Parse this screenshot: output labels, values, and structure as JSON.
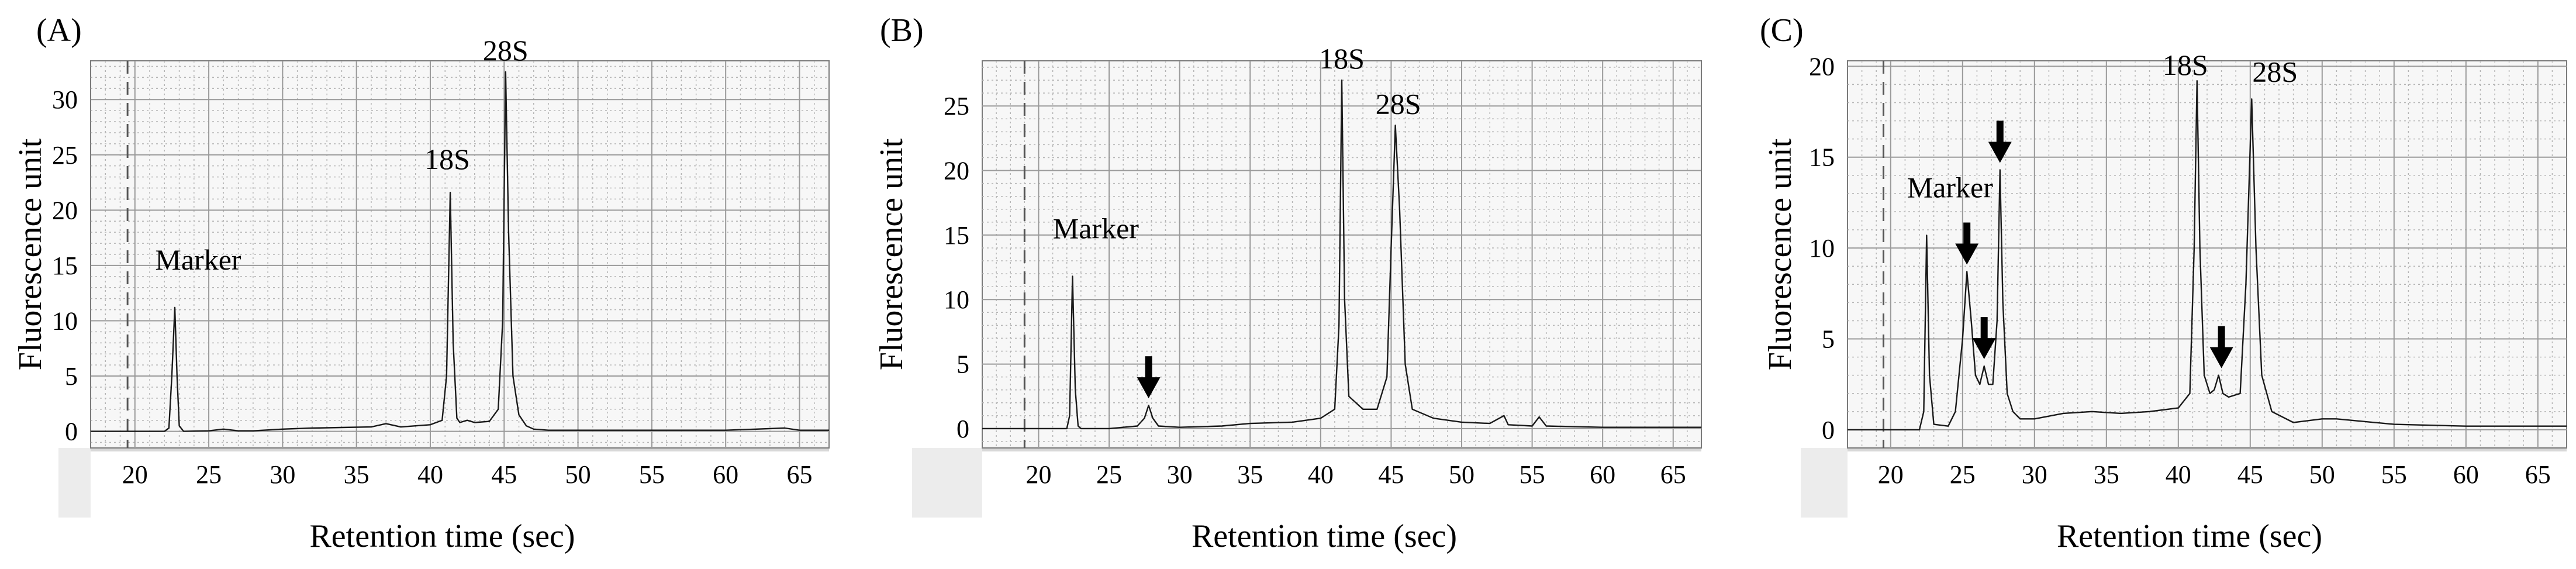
{
  "chart_data": [
    {
      "type": "line",
      "panel": "(A)",
      "xlabel": "Retention time (sec)",
      "ylabel": "Fluorescence unit",
      "xlim": [
        17,
        67
      ],
      "ylim": [
        -1.5,
        33.5
      ],
      "x_ticks": [
        20,
        25,
        30,
        35,
        40,
        45,
        50,
        55,
        60,
        65
      ],
      "y_ticks": [
        0,
        5,
        10,
        15,
        20,
        25,
        30
      ],
      "grid": true,
      "dashed_marker_x": 19.5,
      "series": [
        {
          "points": [
            [
              17,
              0
            ],
            [
              19,
              0
            ],
            [
              20,
              0
            ],
            [
              21,
              0
            ],
            [
              22,
              0
            ],
            [
              22.3,
              0.3
            ],
            [
              22.5,
              5
            ],
            [
              22.7,
              11.2
            ],
            [
              22.85,
              5
            ],
            [
              23,
              0.5
            ],
            [
              23.3,
              0
            ],
            [
              25,
              0.05
            ],
            [
              26,
              0.2
            ],
            [
              27,
              0.05
            ],
            [
              28,
              0.05
            ],
            [
              30,
              0.2
            ],
            [
              32,
              0.3
            ],
            [
              34,
              0.35
            ],
            [
              36,
              0.4
            ],
            [
              37,
              0.7
            ],
            [
              38,
              0.4
            ],
            [
              39,
              0.5
            ],
            [
              40,
              0.6
            ],
            [
              40.8,
              1
            ],
            [
              41.1,
              5
            ],
            [
              41.35,
              21.6
            ],
            [
              41.55,
              8
            ],
            [
              41.8,
              1.2
            ],
            [
              42,
              0.8
            ],
            [
              42.5,
              1
            ],
            [
              43,
              0.8
            ],
            [
              44,
              0.9
            ],
            [
              44.6,
              2
            ],
            [
              44.9,
              10
            ],
            [
              45.1,
              32.5
            ],
            [
              45.3,
              18
            ],
            [
              45.6,
              5
            ],
            [
              46,
              1.5
            ],
            [
              46.5,
              0.5
            ],
            [
              47,
              0.2
            ],
            [
              48,
              0.1
            ],
            [
              50,
              0.1
            ],
            [
              55,
              0.1
            ],
            [
              60,
              0.1
            ],
            [
              64,
              0.3
            ],
            [
              65,
              0.1
            ],
            [
              67,
              0.1
            ]
          ]
        }
      ],
      "annotations": [
        {
          "text": "Marker",
          "x": 22.7,
          "y": 11.2
        },
        {
          "text": "18S",
          "x": 41.35,
          "y": 21.6
        },
        {
          "text": "28S",
          "x": 45.1,
          "y": 32.5
        }
      ],
      "arrows": []
    },
    {
      "type": "line",
      "panel": "(B)",
      "xlabel": "Retention time (sec)",
      "ylabel": "Fluorescence unit",
      "xlim": [
        16,
        67
      ],
      "ylim": [
        -1.5,
        28.5
      ],
      "x_ticks": [
        20,
        25,
        30,
        35,
        40,
        45,
        50,
        55,
        60,
        65
      ],
      "y_ticks": [
        0,
        5,
        10,
        15,
        20,
        25
      ],
      "grid": true,
      "dashed_marker_x": 19,
      "series": [
        {
          "points": [
            [
              16,
              0
            ],
            [
              20,
              0
            ],
            [
              22,
              0
            ],
            [
              22.2,
              1
            ],
            [
              22.4,
              11.8
            ],
            [
              22.6,
              3
            ],
            [
              22.8,
              0.2
            ],
            [
              23,
              0
            ],
            [
              25,
              0
            ],
            [
              27,
              0.2
            ],
            [
              27.5,
              0.8
            ],
            [
              27.8,
              1.8
            ],
            [
              28.1,
              0.8
            ],
            [
              28.5,
              0.2
            ],
            [
              30,
              0.1
            ],
            [
              33,
              0.2
            ],
            [
              35,
              0.4
            ],
            [
              38,
              0.5
            ],
            [
              40,
              0.8
            ],
            [
              41,
              1.5
            ],
            [
              41.3,
              8
            ],
            [
              41.5,
              27
            ],
            [
              41.7,
              10
            ],
            [
              42,
              2.5
            ],
            [
              43,
              1.5
            ],
            [
              44,
              1.5
            ],
            [
              44.7,
              4
            ],
            [
              45,
              14
            ],
            [
              45.3,
              23.5
            ],
            [
              45.6,
              17
            ],
            [
              46,
              5
            ],
            [
              46.5,
              1.5
            ],
            [
              48,
              0.8
            ],
            [
              50,
              0.5
            ],
            [
              52,
              0.4
            ],
            [
              53,
              1
            ],
            [
              53.3,
              0.3
            ],
            [
              55,
              0.2
            ],
            [
              55.5,
              0.9
            ],
            [
              56,
              0.2
            ],
            [
              60,
              0.1
            ],
            [
              62,
              0.1
            ],
            [
              65,
              0.1
            ],
            [
              67,
              0.1
            ]
          ]
        }
      ],
      "annotations": [
        {
          "text": "Marker",
          "x": 22.4,
          "y": 11.8
        },
        {
          "text": "18S",
          "x": 41.5,
          "y": 27
        },
        {
          "text": "28S",
          "x": 45.3,
          "y": 23.5
        }
      ],
      "arrows": [
        {
          "x": 27.8,
          "y": 1.8
        }
      ]
    },
    {
      "type": "line",
      "panel": "(C)",
      "xlabel": "Retention time (sec)",
      "ylabel": "Fluorescence unit",
      "xlim": [
        17,
        67
      ],
      "ylim": [
        -1,
        20.3
      ],
      "x_ticks": [
        20,
        25,
        30,
        35,
        40,
        45,
        50,
        55,
        60,
        65
      ],
      "y_ticks": [
        0,
        5,
        10,
        15,
        20
      ],
      "grid": true,
      "dashed_marker_x": 19.5,
      "series": [
        {
          "points": [
            [
              17,
              0
            ],
            [
              20,
              0
            ],
            [
              22,
              0
            ],
            [
              22.3,
              1
            ],
            [
              22.5,
              10.7
            ],
            [
              22.7,
              3
            ],
            [
              23,
              0.3
            ],
            [
              24,
              0.2
            ],
            [
              24.5,
              1
            ],
            [
              25,
              5
            ],
            [
              25.3,
              8.7
            ],
            [
              25.6,
              6
            ],
            [
              25.9,
              3
            ],
            [
              26.2,
              2.5
            ],
            [
              26.5,
              3.5
            ],
            [
              26.8,
              2.5
            ],
            [
              27.1,
              2.5
            ],
            [
              27.4,
              6
            ],
            [
              27.6,
              14.3
            ],
            [
              27.8,
              7
            ],
            [
              28.1,
              2
            ],
            [
              28.5,
              1
            ],
            [
              29,
              0.6
            ],
            [
              30,
              0.6
            ],
            [
              32,
              0.9
            ],
            [
              34,
              1
            ],
            [
              36,
              0.9
            ],
            [
              38,
              1
            ],
            [
              40,
              1.2
            ],
            [
              40.8,
              2
            ],
            [
              41.1,
              10
            ],
            [
              41.3,
              19.2
            ],
            [
              41.5,
              10
            ],
            [
              41.8,
              3
            ],
            [
              42.2,
              2
            ],
            [
              42.5,
              2.2
            ],
            [
              42.8,
              3
            ],
            [
              43.1,
              2
            ],
            [
              43.5,
              1.8
            ],
            [
              44.3,
              2
            ],
            [
              44.7,
              8
            ],
            [
              45.1,
              18.2
            ],
            [
              45.4,
              10
            ],
            [
              45.8,
              3
            ],
            [
              46.5,
              1
            ],
            [
              48,
              0.4
            ],
            [
              50,
              0.6
            ],
            [
              51,
              0.6
            ],
            [
              55,
              0.3
            ],
            [
              60,
              0.2
            ],
            [
              65,
              0.2
            ],
            [
              67,
              0.2
            ]
          ]
        }
      ],
      "annotations": [
        {
          "text": "Marker",
          "x": 22.5,
          "y": 10.7
        },
        {
          "text": "18S",
          "x": 41.3,
          "y": 19.2
        },
        {
          "text": "28S",
          "x": 45.1,
          "y": 18.2
        }
      ],
      "arrows": [
        {
          "x": 25.3,
          "y": 8.7
        },
        {
          "x": 26.5,
          "y": 3.5
        },
        {
          "x": 27.6,
          "y": 14.3
        },
        {
          "x": 43.0,
          "y": 3.0
        }
      ]
    }
  ]
}
